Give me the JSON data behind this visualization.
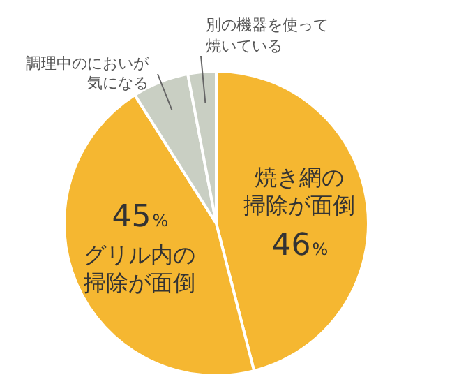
{
  "chart_data": {
    "type": "pie",
    "categories": [
      "焼き網の掃除が面倒",
      "グリル内の掃除が面倒",
      "調理中のにおいが気になる",
      "別の機器を使って焼いている"
    ],
    "values": [
      46,
      45,
      6,
      3
    ],
    "value_labels": [
      "46%",
      "45%",
      null,
      null
    ],
    "colors": [
      "#f5b731",
      "#f5b731",
      "#c9cfc3",
      "#c9cfc3"
    ],
    "legend": false
  }
}
